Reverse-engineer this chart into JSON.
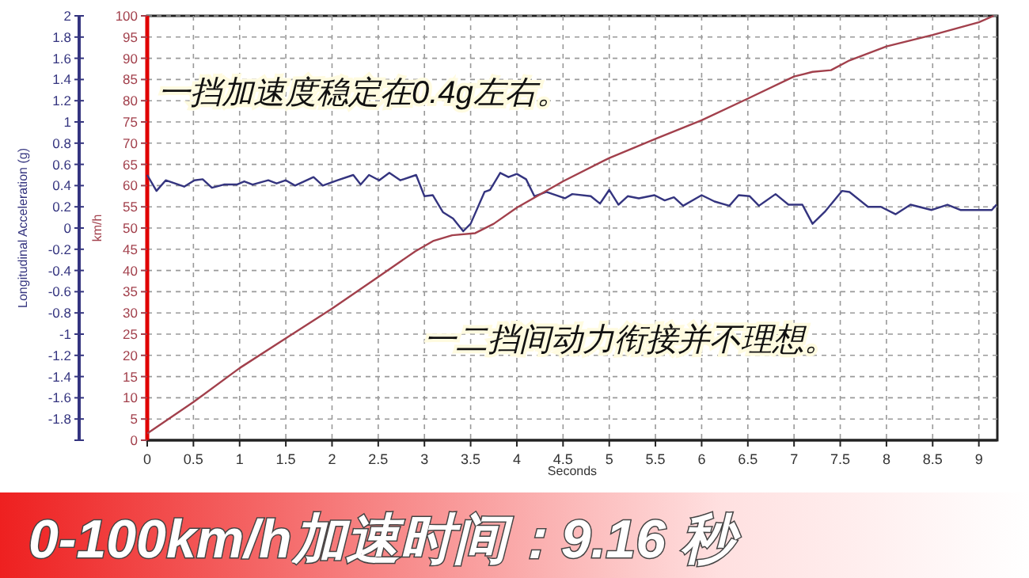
{
  "chart_data": {
    "type": "line",
    "xlabel": "Seconds",
    "ylabel": "Longitudinal Acceleration (g)",
    "y2label": "km/h",
    "xlim": [
      0,
      9.2
    ],
    "xticks": [
      0,
      0.5,
      1,
      1.5,
      2,
      2.5,
      3,
      3.5,
      4,
      4.5,
      5,
      5.5,
      6,
      6.5,
      7,
      7.5,
      8,
      8.5,
      9
    ],
    "ylim": [
      -2,
      2
    ],
    "yticks": [
      {
        "value": -2,
        "label": null
      },
      -1.8,
      -1.6,
      -1.4,
      -1.2,
      -1,
      -0.8,
      -0.6,
      -0.4,
      -0.2,
      0,
      0.2,
      0.4,
      0.6,
      0.8,
      1,
      1.2,
      1.4,
      1.6,
      1.8,
      2
    ],
    "y2lim": [
      0,
      100
    ],
    "y2ticks": [
      0,
      5,
      10,
      15,
      20,
      25,
      30,
      35,
      40,
      45,
      50,
      55,
      60,
      65,
      70,
      75,
      80,
      85,
      90,
      95,
      100
    ],
    "grid": true,
    "marker": "none",
    "line_style": "solid",
    "series": [
      {
        "color": "#34347f",
        "x": [
          0,
          0.1,
          0.2,
          0.4,
          0.51,
          0.6,
          0.7,
          0.83,
          0.97,
          1.05,
          1.14,
          1.31,
          1.4,
          1.5,
          1.6,
          1.8,
          1.9,
          2.06,
          2.23,
          2.31,
          2.4,
          2.51,
          2.62,
          2.74,
          2.91,
          3.0,
          3.09,
          3.2,
          3.31,
          3.42,
          3.5,
          3.65,
          3.71,
          3.82,
          3.91,
          4.0,
          4.1,
          4.19,
          4.32,
          4.52,
          4.6,
          4.8,
          4.9,
          5.0,
          5.1,
          5.2,
          5.32,
          5.49,
          5.6,
          5.7,
          5.8,
          6.0,
          6.14,
          6.3,
          6.4,
          6.52,
          6.62,
          6.8,
          6.94,
          7.09,
          7.2,
          7.34,
          7.52,
          7.6,
          7.8,
          7.94,
          8.1,
          8.26,
          8.49,
          8.66,
          8.8,
          8.97,
          9.14,
          9.19
        ],
        "values": [
          0.5,
          0.35,
          0.45,
          0.39,
          0.45,
          0.46,
          0.38,
          0.41,
          0.41,
          0.44,
          0.41,
          0.45,
          0.42,
          0.45,
          0.4,
          0.48,
          0.4,
          0.45,
          0.5,
          0.41,
          0.5,
          0.45,
          0.52,
          0.45,
          0.5,
          0.3,
          0.31,
          0.15,
          0.09,
          -0.03,
          0.04,
          0.34,
          0.36,
          0.52,
          0.48,
          0.51,
          0.46,
          0.3,
          0.34,
          0.28,
          0.32,
          0.3,
          0.23,
          0.36,
          0.22,
          0.3,
          0.28,
          0.31,
          0.26,
          0.29,
          0.21,
          0.31,
          0.25,
          0.21,
          0.31,
          0.3,
          0.21,
          0.32,
          0.22,
          0.22,
          0.04,
          0.16,
          0.35,
          0.34,
          0.2,
          0.2,
          0.13,
          0.22,
          0.17,
          0.22,
          0.17,
          0.17,
          0.17,
          0.22
        ]
      },
      {
        "color": "#a2404c",
        "axis": "y2",
        "x": [
          0,
          0.5,
          1,
          1.5,
          2,
          2.5,
          2.9,
          3.1,
          3.3,
          3.55,
          3.75,
          4,
          4.5,
          5,
          5.5,
          6,
          6.5,
          7,
          7.2,
          7.4,
          7.6,
          8,
          8.5,
          9,
          9.16
        ],
        "values": [
          1.6,
          9,
          17,
          24,
          31,
          38.5,
          44.5,
          47,
          48.3,
          48.8,
          51,
          54.8,
          61,
          66.5,
          71,
          75.4,
          80.5,
          85.7,
          86.8,
          87.2,
          89.5,
          92.8,
          95.5,
          98.5,
          100
        ]
      }
    ],
    "annotations": [
      "一挡加速度稳定在0.4g左右。",
      "一二挡间动力衔接并不理想。",
      "0-100km/h加速时间：9.16 秒"
    ]
  }
}
